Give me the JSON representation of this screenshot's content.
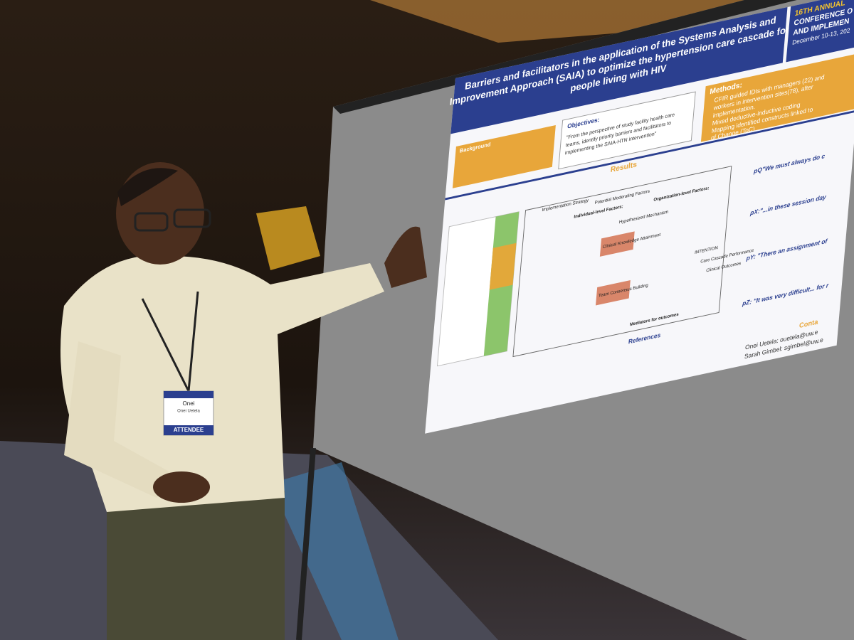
{
  "poster": {
    "title_lines": [
      "Barriers and facilitators in the application of the Systems Analysis and",
      "Improvement Approach (SAIA) to optimize the hypertension care cascade for",
      "people living with HIV"
    ],
    "conference_lines": [
      "16TH ANNUAL",
      "CONFERENCE O",
      "AND IMPLEMEN",
      "December 10-13, 202"
    ],
    "background_heading": "Background",
    "objectives_heading": "Objectives:",
    "objectives_text": [
      "\"From the perspective of study facility health care",
      "teams, identify priority barriers and facilitators to",
      "implementing the SAIA-HTN intervention\""
    ],
    "methods_heading": "Methods:",
    "methods_items": [
      "CFIR guided IDIs with managers (22) and",
      "workers in intervention sites(78), after",
      "implementation.",
      "Mixed deductive-inductive coding",
      "Mapping identified constructs linked to",
      "of Change (ToC)"
    ],
    "results_heading": "Results",
    "diagram_labels": [
      "Implementation Strategy",
      "Potential Moderating Factors",
      "Individual-level Factors:",
      "Organization-level Factors:",
      "Hypothesized Mechanism",
      "Clinical Knowledge Attainment",
      "Team Consensus Building",
      "INTENTION",
      "Care Cascade Performance",
      "Clinical Outcomes",
      "Mediators for outcomes"
    ],
    "quotes": [
      "pQ\"We must always do c",
      "pX:\"...in these session day",
      "pY: \"There an assignment of",
      "pZ: \"It was very difficult... for r"
    ],
    "references_heading": "References",
    "contact_heading": "Conta",
    "contacts": [
      "Onei Uetela: ouetela@uw.e",
      "Sarah Gimbel: sgimbel@uw.e"
    ]
  },
  "badge": {
    "first_name": "Onei",
    "full_name": "Onei Uetela",
    "role": "ATTENDEE"
  }
}
